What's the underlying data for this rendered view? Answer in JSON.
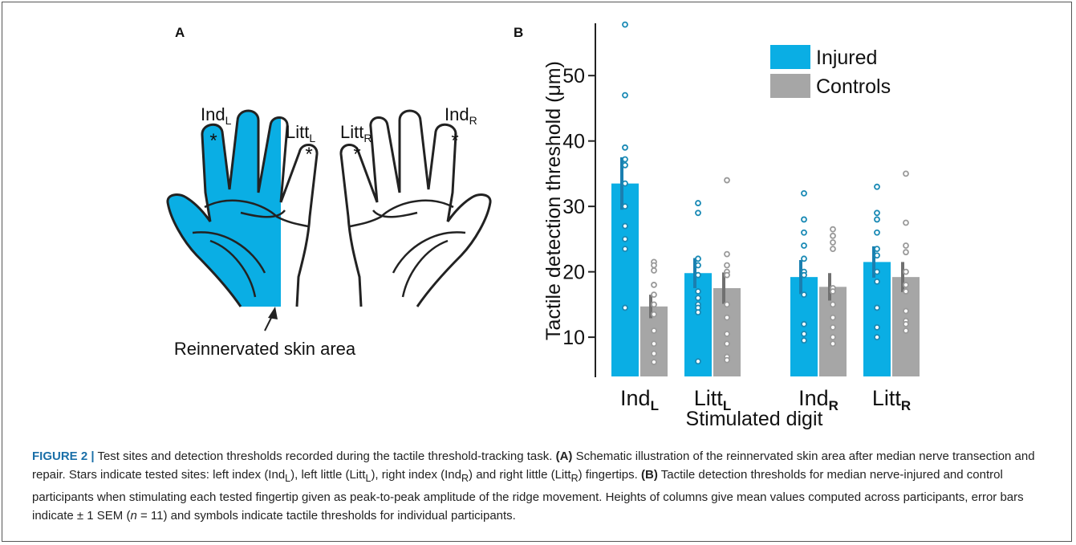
{
  "panel_a": {
    "label": "A",
    "hand_labels": [
      {
        "name": "Ind",
        "sub": "L"
      },
      {
        "name": "Litt",
        "sub": "L"
      },
      {
        "name": "Litt",
        "sub": "R"
      },
      {
        "name": "Ind",
        "sub": "R"
      }
    ],
    "marker": "*",
    "annotation": "Reinnervated skin area"
  },
  "chart_data": {
    "type": "bar",
    "panel_label": "B",
    "y_label": "Tactile detection threshold (μm)",
    "x_label": "Stimulated digit",
    "categories": [
      {
        "name": "Ind",
        "sub": "L"
      },
      {
        "name": "Litt",
        "sub": "L"
      },
      {
        "name": "Ind",
        "sub": "R"
      },
      {
        "name": "Litt",
        "sub": "R"
      }
    ],
    "series": [
      {
        "name": "Injured",
        "color": "#0aaee4",
        "point_color": "#1a8ab5",
        "error_color": "#1a7fb0",
        "values": [
          33.5,
          19.8,
          19.2,
          21.5
        ],
        "sem": [
          4.0,
          2.3,
          2.6,
          2.4
        ],
        "points": [
          [
            57.8,
            47,
            39,
            37.2,
            36.3,
            33.5,
            30,
            27,
            25,
            23.5,
            14.5
          ],
          [
            30.5,
            29,
            22,
            21,
            19.5,
            17,
            16,
            15,
            14.5,
            13.8,
            6.3
          ],
          [
            32,
            28,
            26,
            24,
            22,
            20,
            19.5,
            16.5,
            12,
            10.5,
            9.5
          ],
          [
            33,
            29,
            28,
            26,
            23.5,
            22.5,
            20,
            18.5,
            14.5,
            11.5,
            10
          ]
        ]
      },
      {
        "name": "Controls",
        "color": "#a6a6a6",
        "point_color": "#9a9a9a",
        "error_color": "#707070",
        "values": [
          14.7,
          17.5,
          17.7,
          19.2
        ],
        "sem": [
          1.8,
          2.4,
          2.1,
          2.3
        ],
        "points": [
          [
            21.5,
            21,
            20.2,
            18,
            16.5,
            15,
            13.5,
            11,
            9,
            7.5,
            6.2
          ],
          [
            34,
            22.7,
            21,
            20,
            19.5,
            15,
            13,
            10.5,
            9,
            7,
            6.5
          ],
          [
            26.5,
            25.5,
            24.5,
            23.5,
            17.5,
            17,
            15,
            13,
            11.5,
            10,
            9
          ],
          [
            35,
            27.5,
            24,
            23,
            20,
            18,
            17,
            14,
            12.5,
            12,
            11
          ]
        ]
      }
    ],
    "ylim": [
      4,
      58
    ],
    "yticks": [
      10,
      20,
      30,
      40,
      50
    ],
    "legend": "top-right"
  },
  "caption": {
    "runs": [
      "FIGURE 2 |",
      " Test sites and detection thresholds recorded during the tactile threshold-tracking task. ",
      "(A)",
      " Schematic illustration of the reinnervated skin area after median nerve transection and repair. Stars indicate tested sites: left index (Ind",
      "L",
      "), left little (Litt",
      "L",
      "), right index (Ind",
      "R",
      ") and right little (Litt",
      "R",
      ") fingertips. ",
      "(B)",
      " Tactile detection thresholds for median nerve-injured and control participants when stimulating each tested fingertip given as peak-to-peak amplitude of the ridge movement. Heights of columns give mean values computed across participants, error bars indicate ± 1 SEM (",
      "n",
      " = 11) and symbols indicate tactile thresholds for individual participants."
    ]
  }
}
